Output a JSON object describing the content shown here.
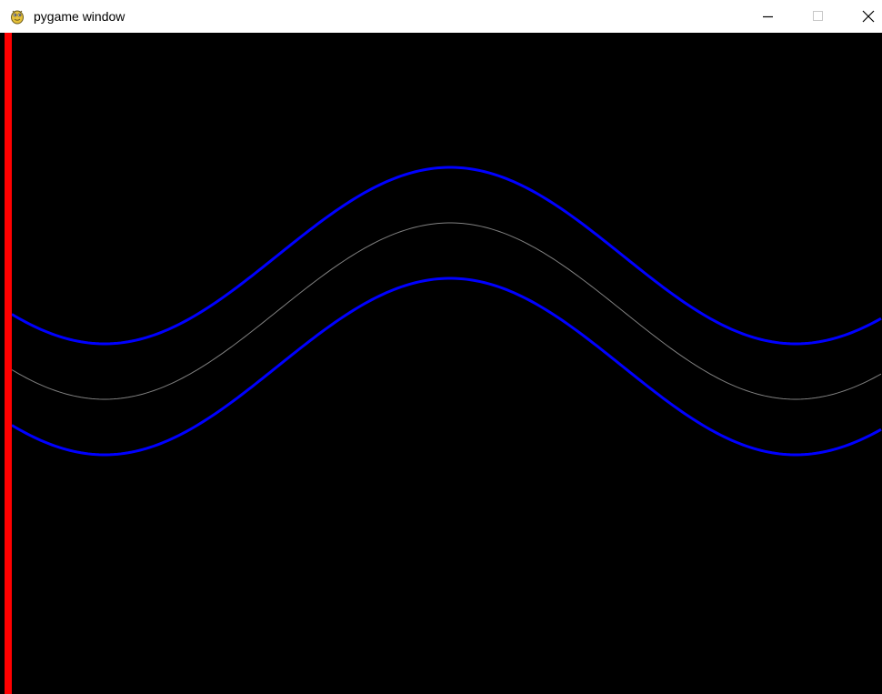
{
  "window": {
    "title": "pygame window",
    "icon": "pygame-snake-icon",
    "controls": {
      "minimize_icon": "minimize-icon",
      "maximize_icon": "maximize-icon",
      "close_icon": "close-icon"
    }
  },
  "scene": {
    "background_color": "#000000",
    "left_bar_color": "#ff0000",
    "road_edge_color": "#0000ff",
    "center_line_color": "#808080"
  }
}
